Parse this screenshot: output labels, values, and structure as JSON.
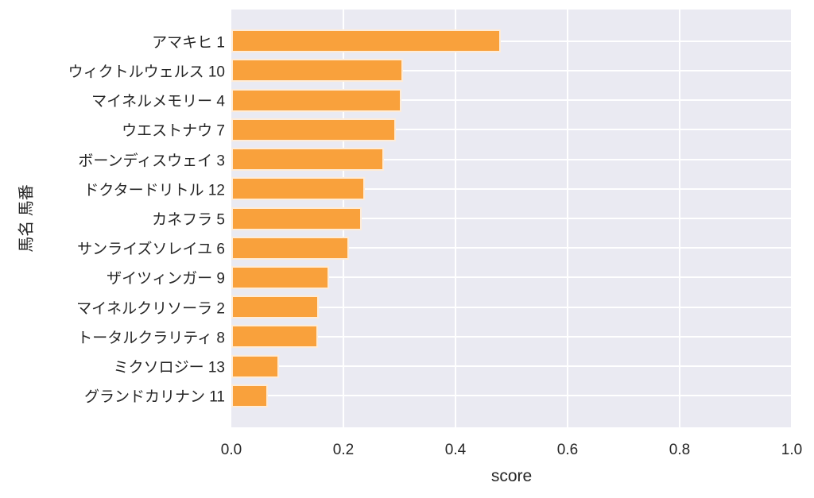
{
  "figure": {
    "background_color": "#ffffff",
    "plot_background_color": "#eaeaf2",
    "grid_color": "#ffffff",
    "bar_color": "#f9a13c",
    "bar_edge_color": "rgba(255,255,255,0.8)",
    "text_color": "#262626"
  },
  "chart_data": {
    "type": "bar",
    "orientation": "horizontal",
    "title": "",
    "xlabel": "score",
    "ylabel": "馬名 馬番",
    "xlim": [
      0.0,
      1.0
    ],
    "x_ticks": [
      {
        "value": 0.0,
        "label": "0.0"
      },
      {
        "value": 0.2,
        "label": "0.2"
      },
      {
        "value": 0.4,
        "label": "0.4"
      },
      {
        "value": 0.6,
        "label": "0.6"
      },
      {
        "value": 0.8,
        "label": "0.8"
      },
      {
        "value": 1.0,
        "label": "1.0"
      }
    ],
    "grid": true,
    "legend": false,
    "categories": [
      "アマキヒ 1",
      "ウィクトルウェルス 10",
      "マイネルメモリー 4",
      "ウエストナウ 7",
      "ボーンディスウェイ 3",
      "ドクタードリトル 12",
      "カネフラ 5",
      "サンライズソレイユ 6",
      "ザイツィンガー 9",
      "マイネルクリソーラ 2",
      "トータルクラリティ 8",
      "ミクソロジー 13",
      "グランドカリナン 11"
    ],
    "values": [
      0.481,
      0.306,
      0.304,
      0.294,
      0.273,
      0.238,
      0.232,
      0.21,
      0.174,
      0.156,
      0.154,
      0.085,
      0.065
    ]
  }
}
